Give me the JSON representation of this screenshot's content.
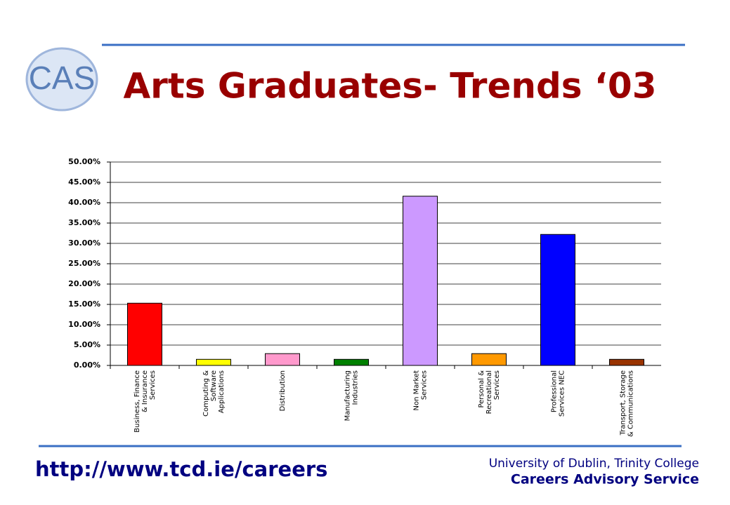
{
  "header": {
    "logo": "CAS",
    "title": "Arts Graduates- Trends ‘03"
  },
  "chart_data": {
    "type": "bar",
    "categories": [
      "Business, Finance\n& Insurance\nServices",
      "Computing &\nSoftware\nApplications",
      "Distribution",
      "Manufacturing\nIndustries",
      "Non Market\nServices",
      "Personal &\nRecreational\nServices",
      "Professional\nServices NEC",
      "Transport, Storage\n& Communications"
    ],
    "values": [
      15.3,
      1.5,
      2.9,
      1.5,
      41.6,
      2.9,
      32.2,
      1.5
    ],
    "colors": [
      "#ff0000",
      "#ffff00",
      "#ff99cc",
      "#008000",
      "#cc99ff",
      "#ff9900",
      "#0000ff",
      "#993300"
    ],
    "ylim": [
      0,
      50
    ],
    "yticks": [
      {
        "value": 0,
        "label": "0.00%"
      },
      {
        "value": 5,
        "label": "5.00%"
      },
      {
        "value": 10,
        "label": "10.00%"
      },
      {
        "value": 15,
        "label": "15.00%"
      },
      {
        "value": 20,
        "label": "20.00%"
      },
      {
        "value": 25,
        "label": "25.00%"
      },
      {
        "value": 30,
        "label": "30.00%"
      },
      {
        "value": 35,
        "label": "35.00%"
      },
      {
        "value": 40,
        "label": "40.00%"
      },
      {
        "value": 45,
        "label": "45.00%"
      },
      {
        "value": 50,
        "label": "50.00%"
      }
    ],
    "grid": true
  },
  "footer": {
    "url": "http://www.tcd.ie/careers",
    "institution": "University of Dublin, Trinity College",
    "service": "Careers Advisory Service"
  }
}
